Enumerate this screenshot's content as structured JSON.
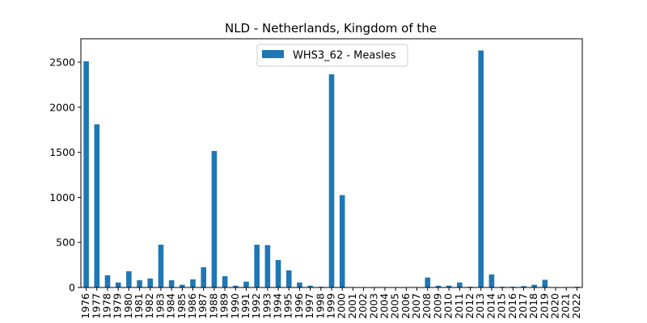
{
  "chart_data": {
    "type": "bar",
    "title": "NLD - Netherlands, Kingdom of the",
    "xlabel": "",
    "ylabel": "",
    "ylim": [
      0,
      2760
    ],
    "yticks": [
      0,
      500,
      1000,
      1500,
      2000,
      2500
    ],
    "grid": false,
    "legend_position": "top-center",
    "bar_color": "#1f77b4",
    "categories": [
      "1976",
      "1977",
      "1978",
      "1979",
      "1980",
      "1981",
      "1982",
      "1983",
      "1984",
      "1985",
      "1986",
      "1987",
      "1988",
      "1989",
      "1990",
      "1991",
      "1992",
      "1993",
      "1994",
      "1995",
      "1996",
      "1997",
      "1998",
      "1999",
      "2000",
      "2001",
      "2002",
      "2003",
      "2004",
      "2005",
      "2006",
      "2007",
      "2008",
      "2009",
      "2010",
      "2011",
      "2012",
      "2013",
      "2014",
      "2015",
      "2016",
      "2017",
      "2018",
      "2019",
      "2020",
      "2021",
      "2022"
    ],
    "series": [
      {
        "name": "WHS3_62 - Measles",
        "values": [
          2510,
          1810,
          135,
          55,
          180,
          80,
          100,
          475,
          80,
          30,
          90,
          225,
          1515,
          125,
          20,
          65,
          475,
          470,
          305,
          190,
          55,
          20,
          8,
          2365,
          1025,
          0,
          0,
          0,
          2,
          0,
          0,
          3,
          110,
          20,
          20,
          55,
          8,
          2630,
          145,
          8,
          8,
          15,
          30,
          85,
          1,
          0,
          8
        ]
      }
    ]
  }
}
